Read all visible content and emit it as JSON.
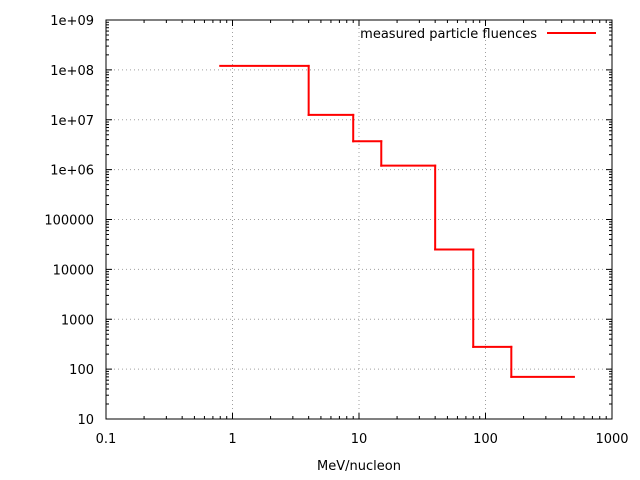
{
  "chart_data": {
    "type": "line",
    "step": true,
    "xscale": "log",
    "yscale": "log",
    "xlabel": "MeV/nucleon",
    "ylabel": "",
    "xlim": [
      0.1,
      1000
    ],
    "ylim": [
      10,
      1000000000
    ],
    "grid": true,
    "legend_position": "top-right",
    "x_ticks": [
      {
        "value": 0.1,
        "label": "0.1"
      },
      {
        "value": 1,
        "label": "1"
      },
      {
        "value": 10,
        "label": "10"
      },
      {
        "value": 100,
        "label": "100"
      },
      {
        "value": 1000,
        "label": "1000"
      }
    ],
    "y_ticks": [
      {
        "value": 10,
        "label": "10"
      },
      {
        "value": 100,
        "label": "100"
      },
      {
        "value": 1000,
        "label": "1000"
      },
      {
        "value": 10000,
        "label": "10000"
      },
      {
        "value": 100000,
        "label": "100000"
      },
      {
        "value": 1000000,
        "label": "1e+06"
      },
      {
        "value": 10000000,
        "label": "1e+07"
      },
      {
        "value": 100000000,
        "label": "1e+08"
      },
      {
        "value": 1000000000,
        "label": "1e+09"
      }
    ],
    "series": [
      {
        "name": "measured particle fluences",
        "color": "#ff0000",
        "bins": [
          {
            "x_start": 0.8,
            "x_end": 4,
            "y": 120000000
          },
          {
            "x_start": 4,
            "x_end": 9,
            "y": 12500000
          },
          {
            "x_start": 9,
            "x_end": 15,
            "y": 3700000
          },
          {
            "x_start": 15,
            "x_end": 40,
            "y": 1200000
          },
          {
            "x_start": 40,
            "x_end": 80,
            "y": 25000
          },
          {
            "x_start": 80,
            "x_end": 160,
            "y": 280
          },
          {
            "x_start": 160,
            "x_end": 500,
            "y": 70
          }
        ]
      }
    ]
  }
}
